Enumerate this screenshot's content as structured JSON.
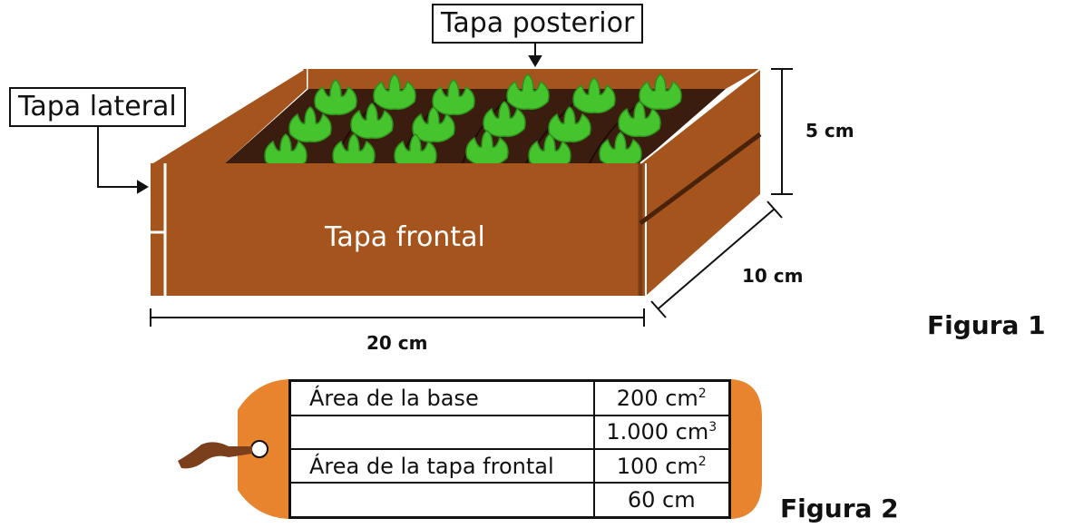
{
  "figure1": {
    "labels": {
      "back_cover": "Tapa posterior",
      "side_cover": "Tapa lateral",
      "front_cover": "Tapa frontal"
    },
    "dimensions": {
      "height": "5 cm",
      "depth": "10 cm",
      "length": "20 cm"
    },
    "caption": "Figura 1",
    "colors": {
      "wood": "#a5541e",
      "wood_dark": "#7a3a14",
      "soil": "#3a1d0e",
      "lettuce": "#45c42e"
    }
  },
  "figure2": {
    "caption": "Figura 2",
    "rows": [
      {
        "label": "Área de la base",
        "value": "200 cm",
        "exp": "2"
      },
      {
        "label": "",
        "value": "1.000 cm",
        "exp": "3"
      },
      {
        "label": "Área de la tapa frontal",
        "value": "100 cm",
        "exp": "2"
      },
      {
        "label": "",
        "value": "60 cm",
        "exp": ""
      }
    ],
    "colors": {
      "tag": "#e8832e",
      "string": "#7b3f1c"
    }
  }
}
